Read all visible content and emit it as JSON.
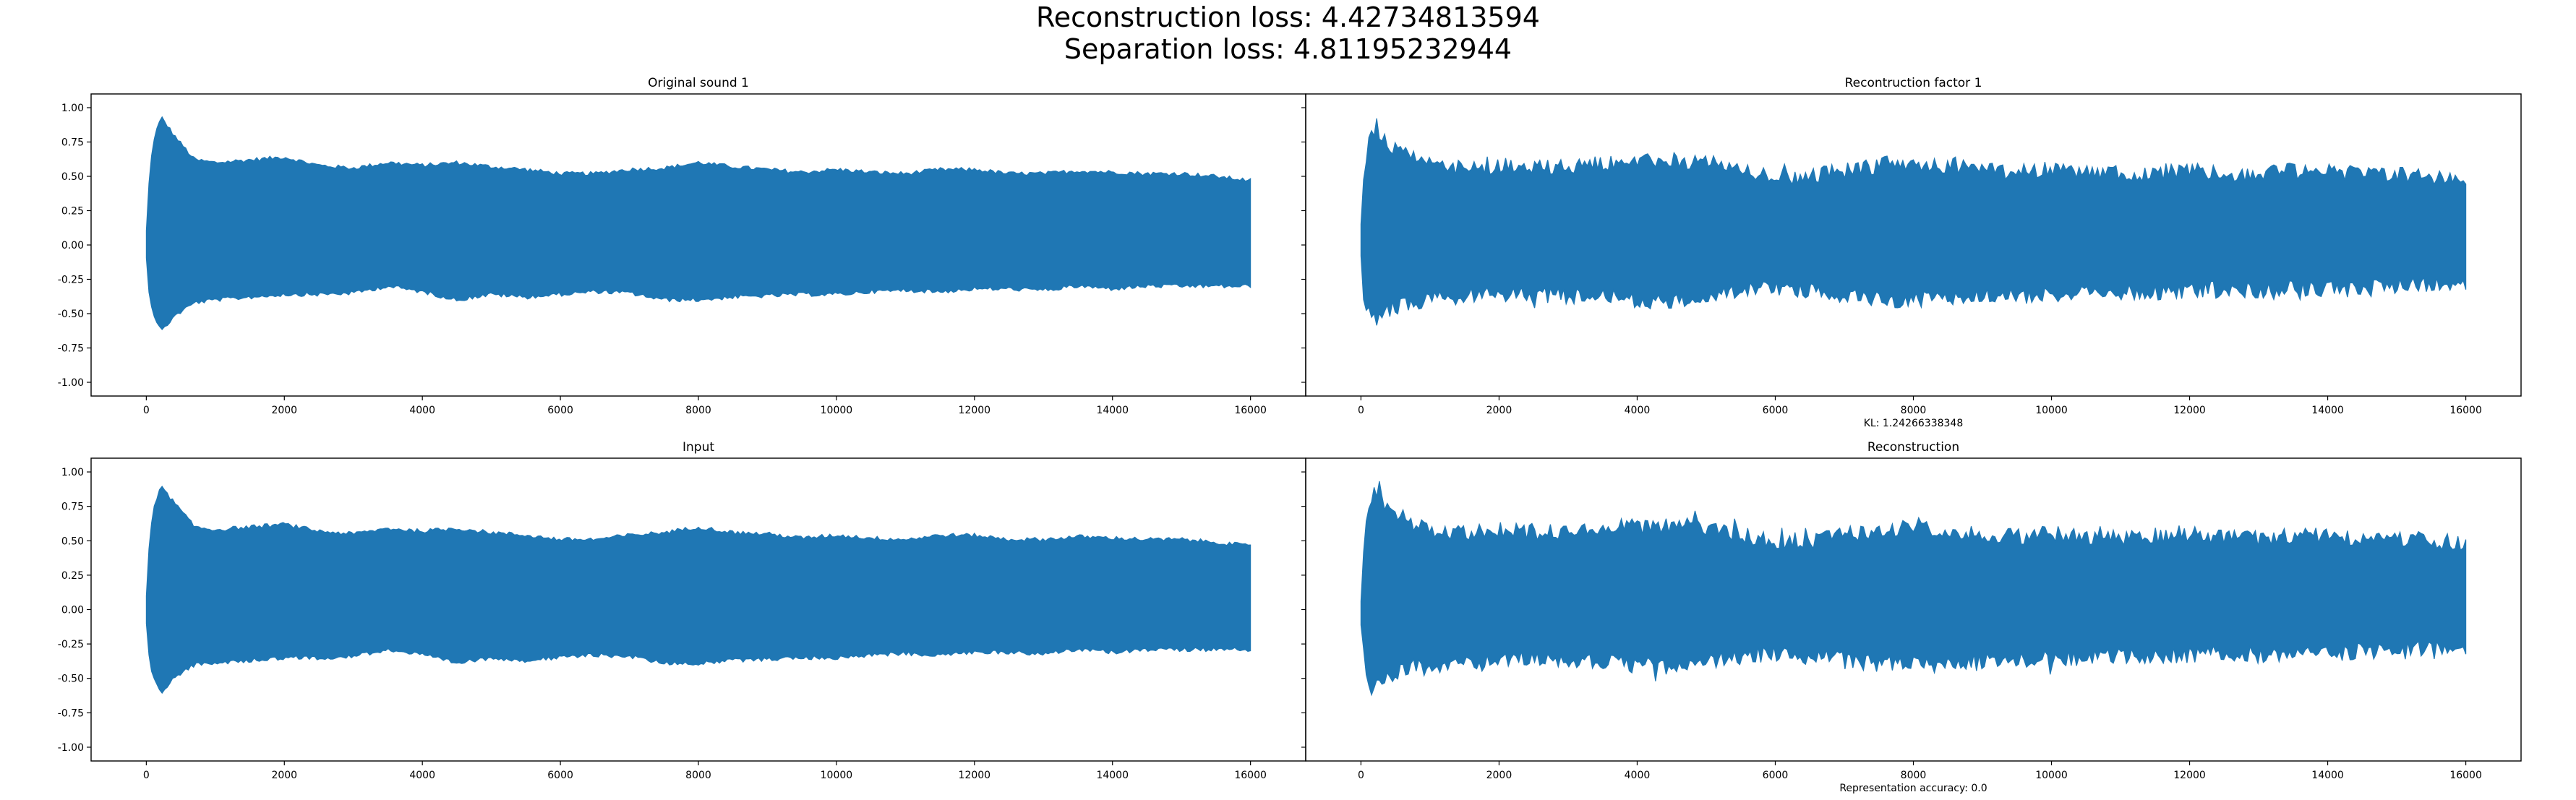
{
  "figure": {
    "suptitle_line1": "Reconstruction loss: 4.42734813594",
    "suptitle_line2": "Separation loss: 4.81195232944"
  },
  "colors": {
    "waveform": "#1f77b4",
    "axes": "#000000",
    "background": "#ffffff"
  },
  "chart_data": [
    {
      "type": "line",
      "title": "Original sound 1",
      "xlabel": "",
      "ylabel": "",
      "xlim": [
        -800,
        16800
      ],
      "ylim": [
        -1.1,
        1.1
      ],
      "xticks": [
        0,
        2000,
        4000,
        6000,
        8000,
        10000,
        12000,
        14000,
        16000
      ],
      "yticks": [
        -1.0,
        -0.75,
        -0.5,
        -0.25,
        0.0,
        0.25,
        0.5,
        0.75,
        1.0
      ],
      "ytick_labels": [
        "-1.00",
        "-0.75",
        "-0.50",
        "-0.25",
        "0.00",
        "0.25",
        "0.50",
        "0.75",
        "1.00"
      ],
      "ytick_labels_visible": true,
      "grid": false,
      "series": [
        {
          "x": [
            0,
            50,
            120,
            220,
            400,
            700,
            1000,
            1500,
            2000,
            2500,
            3000,
            3500,
            4000,
            4500,
            5000,
            5500,
            6000,
            6500,
            7000,
            7500,
            8000,
            8500,
            9000,
            9500,
            10000,
            10500,
            11000,
            11500,
            12000,
            12500,
            13000,
            13500,
            14000,
            14500,
            15000,
            15500,
            16000
          ],
          "upper": [
            0.1,
            0.55,
            0.8,
            0.93,
            0.8,
            0.62,
            0.6,
            0.62,
            0.64,
            0.58,
            0.56,
            0.6,
            0.58,
            0.6,
            0.57,
            0.55,
            0.52,
            0.52,
            0.55,
            0.56,
            0.6,
            0.57,
            0.55,
            0.53,
            0.55,
            0.53,
            0.52,
            0.55,
            0.55,
            0.52,
            0.52,
            0.54,
            0.53,
            0.52,
            0.52,
            0.5,
            0.47
          ],
          "lower": [
            -0.1,
            -0.4,
            -0.52,
            -0.63,
            -0.52,
            -0.42,
            -0.4,
            -0.38,
            -0.36,
            -0.36,
            -0.35,
            -0.3,
            -0.34,
            -0.4,
            -0.36,
            -0.38,
            -0.36,
            -0.34,
            -0.35,
            -0.4,
            -0.4,
            -0.38,
            -0.37,
            -0.36,
            -0.36,
            -0.34,
            -0.33,
            -0.34,
            -0.32,
            -0.32,
            -0.33,
            -0.3,
            -0.32,
            -0.3,
            -0.3,
            -0.3,
            -0.3
          ],
          "noise": 0.015
        }
      ]
    },
    {
      "type": "line",
      "title": "Recontruction factor 1",
      "xlabel": "KL: 1.24266338348",
      "ylabel": "",
      "xlim": [
        -800,
        16800
      ],
      "ylim": [
        -1.1,
        1.1
      ],
      "xticks": [
        0,
        2000,
        4000,
        6000,
        8000,
        10000,
        12000,
        14000,
        16000
      ],
      "yticks": [
        -1.0,
        -0.75,
        -0.5,
        -0.25,
        0.0,
        0.25,
        0.5,
        0.75,
        1.0
      ],
      "ytick_labels_visible": false,
      "grid": false,
      "series": [
        {
          "x": [
            0,
            50,
            120,
            220,
            400,
            700,
            1000,
            1500,
            2000,
            2500,
            3000,
            3500,
            4000,
            4500,
            5000,
            5500,
            6000,
            6500,
            7000,
            7500,
            8000,
            8500,
            9000,
            9500,
            10000,
            10500,
            11000,
            11500,
            12000,
            12500,
            13000,
            13500,
            14000,
            14500,
            15000,
            15500,
            16000
          ],
          "upper": [
            0.1,
            0.55,
            0.78,
            0.86,
            0.74,
            0.64,
            0.58,
            0.56,
            0.58,
            0.56,
            0.57,
            0.6,
            0.6,
            0.62,
            0.6,
            0.55,
            0.48,
            0.5,
            0.54,
            0.58,
            0.6,
            0.58,
            0.55,
            0.53,
            0.55,
            0.53,
            0.52,
            0.53,
            0.55,
            0.52,
            0.52,
            0.54,
            0.53,
            0.52,
            0.52,
            0.5,
            0.48
          ],
          "lower": [
            -0.1,
            -0.42,
            -0.52,
            -0.57,
            -0.48,
            -0.42,
            -0.4,
            -0.38,
            -0.36,
            -0.36,
            -0.38,
            -0.38,
            -0.4,
            -0.42,
            -0.38,
            -0.34,
            -0.32,
            -0.34,
            -0.36,
            -0.4,
            -0.4,
            -0.38,
            -0.37,
            -0.37,
            -0.36,
            -0.35,
            -0.34,
            -0.34,
            -0.33,
            -0.32,
            -0.33,
            -0.32,
            -0.32,
            -0.3,
            -0.3,
            -0.28,
            -0.27
          ],
          "noise": 0.06
        }
      ]
    },
    {
      "type": "line",
      "title": "Input",
      "xlabel": "",
      "ylabel": "",
      "xlim": [
        -800,
        16800
      ],
      "ylim": [
        -1.1,
        1.1
      ],
      "xticks": [
        0,
        2000,
        4000,
        6000,
        8000,
        10000,
        12000,
        14000,
        16000
      ],
      "yticks": [
        -1.0,
        -0.75,
        -0.5,
        -0.25,
        0.0,
        0.25,
        0.5,
        0.75,
        1.0
      ],
      "ytick_labels": [
        "-1.00",
        "-0.75",
        "-0.50",
        "-0.25",
        "0.00",
        "0.25",
        "0.50",
        "0.75",
        "1.00"
      ],
      "ytick_labels_visible": true,
      "grid": false,
      "series": [
        {
          "x": [
            0,
            50,
            120,
            220,
            400,
            700,
            1000,
            1500,
            2000,
            2500,
            3000,
            3500,
            4000,
            4500,
            5000,
            5500,
            6000,
            6500,
            7000,
            7500,
            8000,
            8500,
            9000,
            9500,
            10000,
            10500,
            11000,
            11500,
            12000,
            12500,
            13000,
            13500,
            14000,
            14500,
            15000,
            15500,
            16000
          ],
          "upper": [
            0.1,
            0.55,
            0.78,
            0.89,
            0.78,
            0.6,
            0.58,
            0.6,
            0.62,
            0.57,
            0.55,
            0.59,
            0.57,
            0.59,
            0.56,
            0.54,
            0.51,
            0.51,
            0.54,
            0.56,
            0.6,
            0.56,
            0.55,
            0.52,
            0.54,
            0.52,
            0.51,
            0.54,
            0.54,
            0.51,
            0.51,
            0.53,
            0.52,
            0.51,
            0.51,
            0.49,
            0.46
          ],
          "lower": [
            -0.1,
            -0.4,
            -0.5,
            -0.61,
            -0.5,
            -0.4,
            -0.39,
            -0.37,
            -0.35,
            -0.35,
            -0.34,
            -0.29,
            -0.33,
            -0.39,
            -0.35,
            -0.37,
            -0.35,
            -0.33,
            -0.34,
            -0.39,
            -0.39,
            -0.37,
            -0.36,
            -0.35,
            -0.35,
            -0.33,
            -0.32,
            -0.33,
            -0.31,
            -0.31,
            -0.32,
            -0.29,
            -0.31,
            -0.29,
            -0.29,
            -0.29,
            -0.29
          ],
          "noise": 0.015
        }
      ]
    },
    {
      "type": "line",
      "title": "Reconstruction",
      "xlabel": "Representation accuracy: 0.0",
      "ylabel": "",
      "xlim": [
        -800,
        16800
      ],
      "ylim": [
        -1.1,
        1.1
      ],
      "xticks": [
        0,
        2000,
        4000,
        6000,
        8000,
        10000,
        12000,
        14000,
        16000
      ],
      "yticks": [
        -1.0,
        -0.75,
        -0.5,
        -0.25,
        0.0,
        0.25,
        0.5,
        0.75,
        1.0
      ],
      "ytick_labels_visible": false,
      "grid": false,
      "series": [
        {
          "x": [
            0,
            50,
            120,
            220,
            400,
            700,
            1000,
            1500,
            2000,
            2500,
            3000,
            3500,
            4000,
            4500,
            5000,
            5500,
            6000,
            6500,
            7000,
            7500,
            8000,
            8500,
            9000,
            9500,
            10000,
            10500,
            11000,
            11500,
            12000,
            12500,
            13000,
            13500,
            14000,
            14500,
            15000,
            15500,
            16000
          ],
          "upper": [
            0.1,
            0.55,
            0.78,
            0.86,
            0.74,
            0.64,
            0.58,
            0.56,
            0.58,
            0.56,
            0.57,
            0.6,
            0.6,
            0.62,
            0.6,
            0.55,
            0.48,
            0.5,
            0.54,
            0.58,
            0.6,
            0.58,
            0.55,
            0.53,
            0.55,
            0.53,
            0.52,
            0.53,
            0.55,
            0.52,
            0.52,
            0.54,
            0.53,
            0.52,
            0.52,
            0.5,
            0.48
          ],
          "lower": [
            -0.1,
            -0.42,
            -0.52,
            -0.57,
            -0.48,
            -0.42,
            -0.4,
            -0.38,
            -0.36,
            -0.36,
            -0.38,
            -0.38,
            -0.4,
            -0.42,
            -0.38,
            -0.34,
            -0.32,
            -0.34,
            -0.36,
            -0.4,
            -0.4,
            -0.38,
            -0.37,
            -0.37,
            -0.36,
            -0.35,
            -0.34,
            -0.34,
            -0.33,
            -0.32,
            -0.33,
            -0.32,
            -0.32,
            -0.3,
            -0.3,
            -0.28,
            -0.27
          ],
          "noise": 0.06
        }
      ]
    }
  ]
}
